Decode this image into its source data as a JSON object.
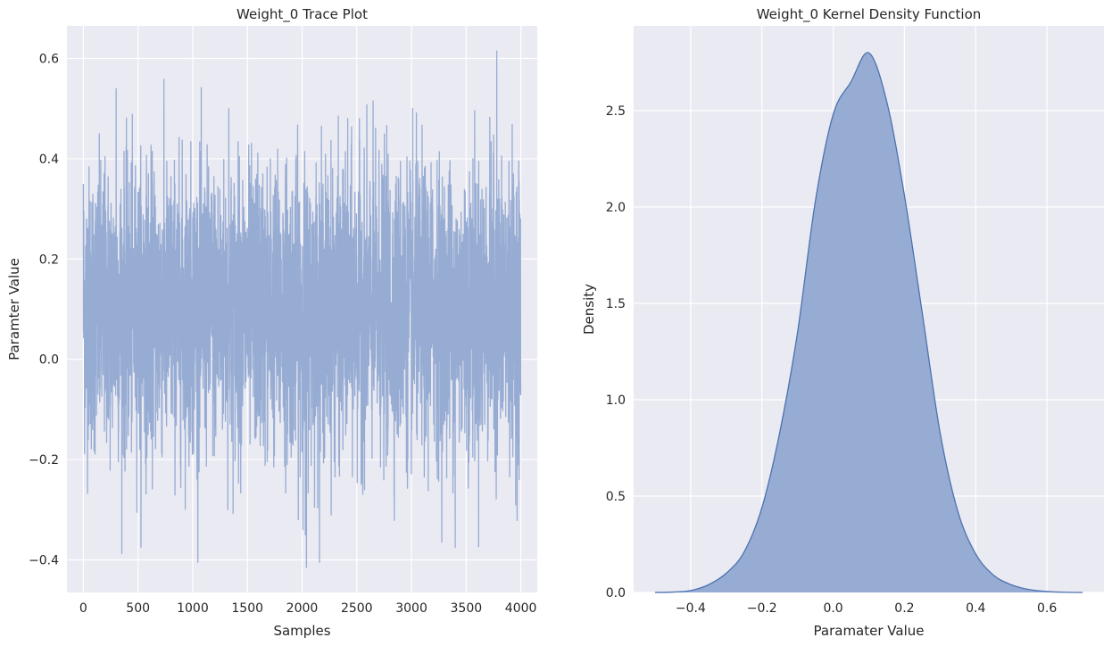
{
  "chart_data": [
    {
      "type": "line",
      "title": "Weight_0 Trace Plot",
      "xlabel": "Samples",
      "ylabel": "Paramter Value",
      "xlim": [
        -150,
        4150
      ],
      "ylim": [
        -0.465,
        0.665
      ],
      "xticks": [
        0,
        500,
        1000,
        1500,
        2000,
        2500,
        3000,
        3500,
        4000
      ],
      "xtick_labels": [
        "0",
        "500",
        "1000",
        "1500",
        "2000",
        "2500",
        "3000",
        "3500",
        "4000"
      ],
      "yticks": [
        -0.4,
        -0.2,
        0.0,
        0.2,
        0.4,
        0.6
      ],
      "ytick_labels": [
        "−0.4",
        "−0.2",
        "0.0",
        "0.2",
        "0.4",
        "0.6"
      ],
      "grid": true,
      "series": [
        {
          "color": "#97acd3",
          "n_samples": 4000,
          "mean": 0.1,
          "std": 0.14,
          "x": [
            0,
            300,
            1330,
            2030,
            2040,
            3400,
            3780,
            3990
          ],
          "y": [
            0.35,
            0.54,
            0.5,
            -0.35,
            -0.415,
            -0.375,
            0.615,
            0.14
          ]
        }
      ]
    },
    {
      "type": "area",
      "title": "Weight_0 Kernel Density Function",
      "xlabel": "Paramater Value",
      "ylabel": "Density",
      "xlim": [
        -0.56,
        0.76
      ],
      "ylim": [
        0,
        2.94
      ],
      "xticks": [
        -0.4,
        -0.2,
        0.0,
        0.2,
        0.4,
        0.6
      ],
      "xtick_labels": [
        "−0.4",
        "−0.2",
        "0.0",
        "0.2",
        "0.4",
        "0.6"
      ],
      "yticks": [
        0.0,
        0.5,
        1.0,
        1.5,
        2.0,
        2.5
      ],
      "ytick_labels": [
        "0.0",
        "0.5",
        "1.0",
        "1.5",
        "2.0",
        "2.5"
      ],
      "grid": true,
      "series": [
        {
          "color": "#4c72b0",
          "fill": "#97acd3",
          "x": [
            -0.5,
            -0.45,
            -0.4,
            -0.35,
            -0.3,
            -0.25,
            -0.2,
            -0.15,
            -0.1,
            -0.05,
            0.0,
            0.05,
            0.1,
            0.15,
            0.2,
            0.25,
            0.3,
            0.35,
            0.4,
            0.45,
            0.5,
            0.55,
            0.6,
            0.65,
            0.7
          ],
          "y": [
            0.0,
            0.002,
            0.01,
            0.04,
            0.1,
            0.21,
            0.44,
            0.83,
            1.35,
            2.03,
            2.48,
            2.65,
            2.8,
            2.55,
            2.06,
            1.45,
            0.83,
            0.42,
            0.2,
            0.09,
            0.04,
            0.015,
            0.005,
            0.001,
            0.0
          ]
        }
      ]
    }
  ]
}
